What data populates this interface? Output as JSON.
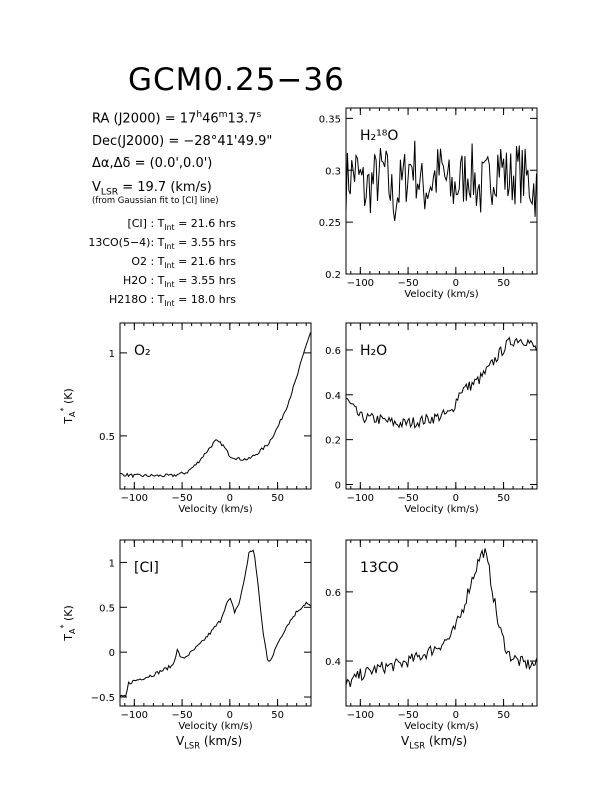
{
  "source": {
    "name": "GCM0.25−36",
    "ra_label": "RA (J2000) =",
    "ra_h": "17",
    "ra_m": "46",
    "ra_s": "13.7",
    "dec_label": "Dec(J2000) =",
    "dec_value": "−28°41'49.9\"",
    "offset_label": "Δα,Δδ =",
    "offset_value": "(0.0',0.0')",
    "vlsr_label": "V",
    "vlsr_sub": "LSR",
    "vlsr_value": "= 19.7 (km/s)",
    "vlsr_note": "(from Gaussian fit to [CI] line)"
  },
  "integration_times": [
    {
      "line": "[CI] :",
      "value": "= 21.6 hrs"
    },
    {
      "line": "13CO(5−4):",
      "value": "= 3.55 hrs"
    },
    {
      "line": "O2 :",
      "value": "= 21.6 hrs"
    },
    {
      "line": "H2O :",
      "value": "= 3.55 hrs"
    },
    {
      "line": "H218O :",
      "value": "= 18.0 hrs"
    }
  ],
  "tint_label": "T",
  "tint_sub": "Int",
  "chart_data": [
    {
      "id": "h218o",
      "type": "line",
      "label": "H₂¹⁸O",
      "xlim": [
        -115,
        85
      ],
      "ylim": [
        0.2,
        0.36
      ],
      "yticks": [
        0.2,
        0.25,
        0.3,
        0.35
      ],
      "ytick_labels": [
        "0.2",
        "0.25",
        "0.3",
        "0.35"
      ],
      "xticks": [
        -100,
        -50,
        0,
        50
      ],
      "xtick_labels": [
        "−100",
        "−50",
        "0",
        "50"
      ],
      "xlabel": "Velocity (km/s)",
      "ylabel": "",
      "x": [
        -115,
        -105,
        -95,
        -85,
        -75,
        -65,
        -55,
        -45,
        -35,
        -25,
        -15,
        -5,
        5,
        15,
        25,
        35,
        45,
        55,
        65,
        75,
        85
      ],
      "y": [
        0.29,
        0.3,
        0.28,
        0.29,
        0.3,
        0.27,
        0.29,
        0.31,
        0.28,
        0.29,
        0.3,
        0.28,
        0.29,
        0.3,
        0.28,
        0.29,
        0.31,
        0.29,
        0.3,
        0.29,
        0.28
      ],
      "noise": 0.03
    },
    {
      "id": "o2",
      "type": "line",
      "label": "O₂",
      "xlim": [
        -115,
        85
      ],
      "ylim": [
        0.18,
        1.18
      ],
      "yticks": [
        0.5,
        1
      ],
      "ytick_labels": [
        "0.5",
        "1"
      ],
      "xticks": [
        -100,
        -50,
        0,
        50
      ],
      "xtick_labels": [
        "−100",
        "−50",
        "0",
        "50"
      ],
      "xlabel": "Velocity (km/s)",
      "ylabel": "T*A (K)",
      "x": [
        -115,
        -100,
        -80,
        -60,
        -45,
        -35,
        -25,
        -15,
        -8,
        0,
        10,
        20,
        30,
        40,
        50,
        60,
        70,
        80,
        85
      ],
      "y": [
        0.27,
        0.26,
        0.26,
        0.26,
        0.28,
        0.33,
        0.4,
        0.47,
        0.45,
        0.38,
        0.36,
        0.36,
        0.4,
        0.45,
        0.55,
        0.68,
        0.85,
        1.05,
        1.13
      ],
      "noise": 0.01
    },
    {
      "id": "h2o",
      "type": "line",
      "label": "H₂O",
      "xlim": [
        -115,
        85
      ],
      "ylim": [
        -0.02,
        0.72
      ],
      "yticks": [
        0,
        0.2,
        0.4,
        0.6
      ],
      "ytick_labels": [
        "0",
        "0.2",
        "0.4",
        "0.6"
      ],
      "xticks": [
        -100,
        -50,
        0,
        50
      ],
      "xtick_labels": [
        "−100",
        "−50",
        "0",
        "50"
      ],
      "xlabel": "Velocity (km/s)",
      "ylabel": "",
      "x": [
        -115,
        -100,
        -80,
        -60,
        -40,
        -20,
        -5,
        5,
        15,
        25,
        35,
        45,
        55,
        65,
        75,
        85
      ],
      "y": [
        0.38,
        0.3,
        0.29,
        0.27,
        0.28,
        0.3,
        0.32,
        0.42,
        0.44,
        0.47,
        0.52,
        0.58,
        0.63,
        0.65,
        0.64,
        0.6
      ],
      "noise": 0.025
    },
    {
      "id": "ci",
      "type": "line",
      "label": "[CI]",
      "xlim": [
        -115,
        85
      ],
      "ylim": [
        -0.6,
        1.25
      ],
      "yticks": [
        -0.5,
        0,
        0.5,
        1
      ],
      "ytick_labels": [
        "−0.5",
        "0",
        "0.5",
        "1"
      ],
      "xticks": [
        -100,
        -50,
        0,
        50
      ],
      "xtick_labels": [
        "−100",
        "−50",
        "0",
        "50"
      ],
      "xlabel": "Velocity (km/s)",
      "ylabel": "T*A (K)",
      "x": [
        -115,
        -108,
        -107,
        -100,
        -80,
        -60,
        -55,
        -50,
        -40,
        -30,
        -20,
        -10,
        -5,
        0,
        5,
        10,
        15,
        20,
        25,
        30,
        35,
        40,
        45,
        50,
        60,
        70,
        80,
        85
      ],
      "y": [
        -0.5,
        -0.5,
        -0.35,
        -0.32,
        -0.25,
        -0.15,
        0.02,
        -0.08,
        0.0,
        0.1,
        0.22,
        0.35,
        0.5,
        0.6,
        0.45,
        0.55,
        0.8,
        1.1,
        1.15,
        0.7,
        0.2,
        -0.1,
        -0.05,
        0.1,
        0.3,
        0.45,
        0.55,
        0.5
      ],
      "noise": 0.02
    },
    {
      "id": "co13",
      "type": "line",
      "label": "13CO",
      "xlim": [
        -115,
        85
      ],
      "ylim": [
        0.27,
        0.75
      ],
      "yticks": [
        0.4,
        0.6
      ],
      "ytick_labels": [
        "0.4",
        "0.6"
      ],
      "xticks": [
        -100,
        -50,
        0,
        50
      ],
      "xtick_labels": [
        "−100",
        "−50",
        "0",
        "50"
      ],
      "xlabel": "Velocity (km/s)",
      "ylabel": "",
      "x": [
        -115,
        -100,
        -80,
        -60,
        -40,
        -20,
        -5,
        5,
        15,
        25,
        30,
        35,
        45,
        55,
        65,
        75,
        85
      ],
      "y": [
        0.33,
        0.36,
        0.38,
        0.39,
        0.41,
        0.44,
        0.47,
        0.53,
        0.62,
        0.7,
        0.72,
        0.66,
        0.5,
        0.42,
        0.4,
        0.39,
        0.39
      ],
      "noise": 0.018
    }
  ],
  "bottom_label_main": "V",
  "bottom_label_sub": "LSR",
  "bottom_label_unit": "(km/s)"
}
